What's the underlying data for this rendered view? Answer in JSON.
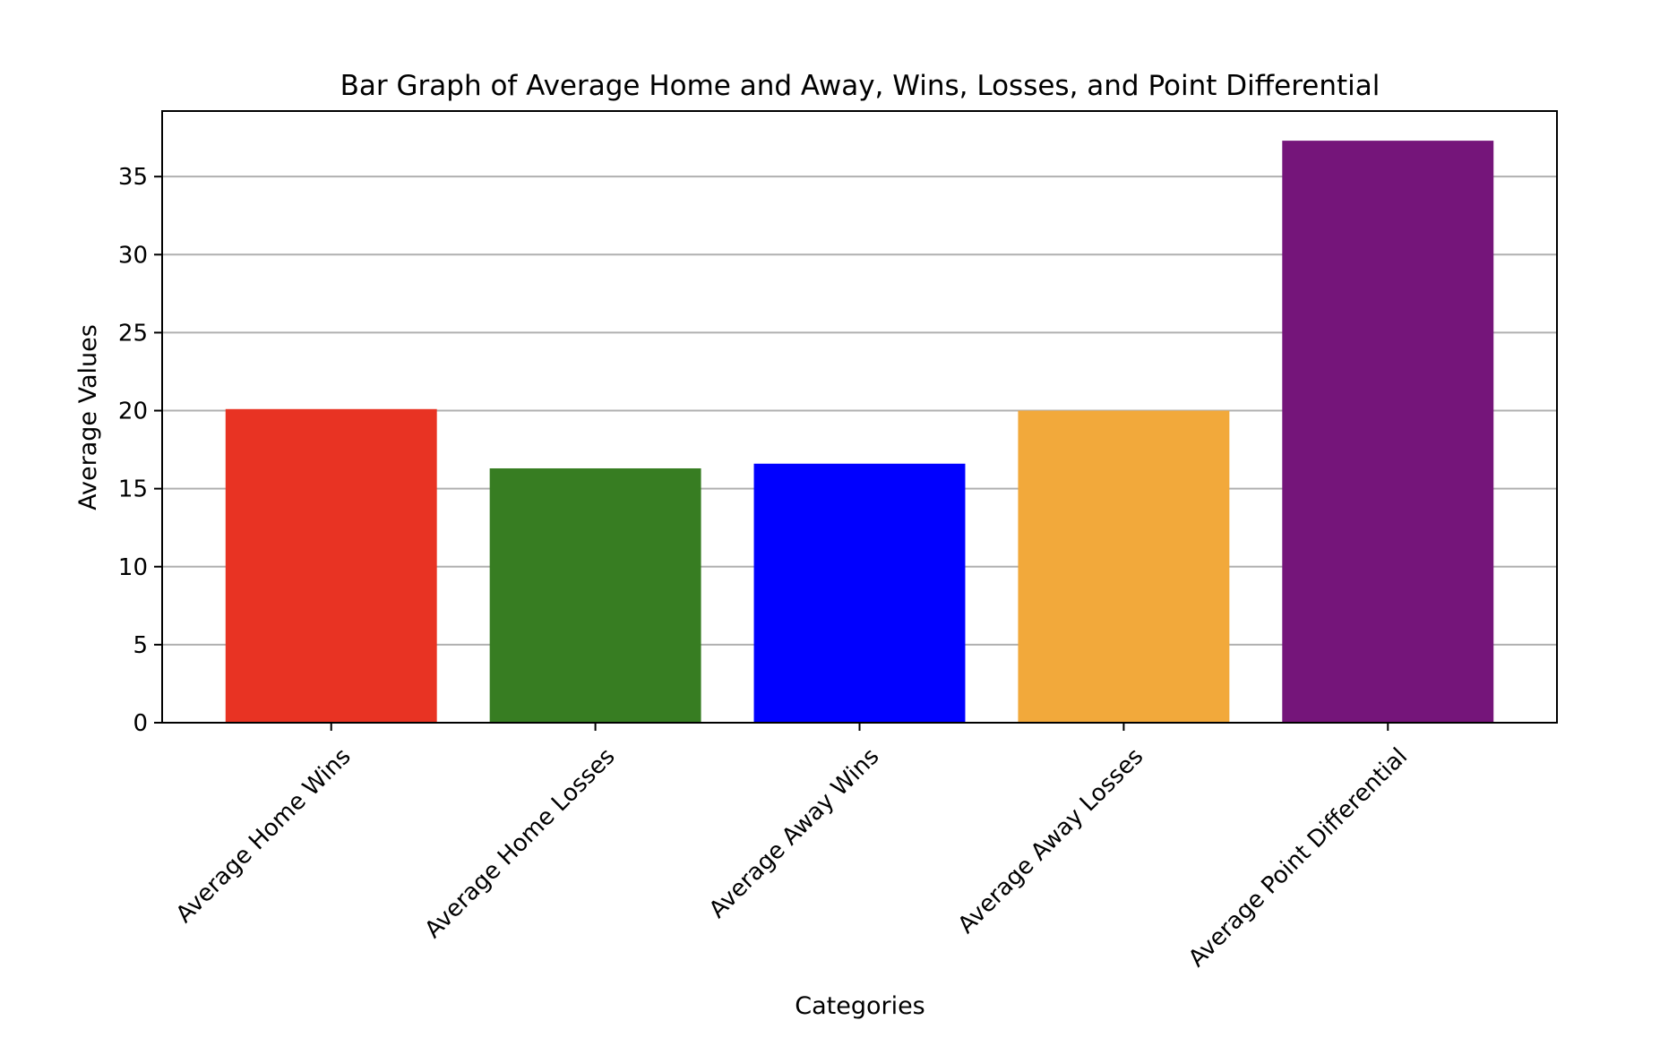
{
  "chart_data": {
    "type": "bar",
    "title": "Bar Graph of Average Home and Away, Wins, Losses, and Point Differential",
    "xlabel": "Categories",
    "ylabel": "Average Values",
    "categories": [
      "Average Home Wins",
      "Average Home Losses",
      "Average Away Wins",
      "Average Away Losses",
      "Average Point Differential"
    ],
    "values": [
      20.1,
      16.3,
      16.6,
      20.0,
      37.3
    ],
    "colors": [
      "#e83323",
      "#377d22",
      "#0000ff",
      "#f2a93b",
      "#75157a"
    ],
    "ylim": [
      0,
      39.2
    ],
    "yticks": [
      0,
      5,
      10,
      15,
      20,
      25,
      30,
      35
    ],
    "grid": "y",
    "legend": "none"
  }
}
